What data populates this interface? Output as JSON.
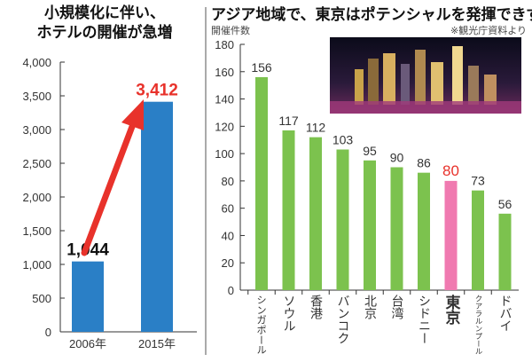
{
  "chart_data": [
    {
      "type": "bar",
      "title_lines": [
        "小規模化に伴い、",
        "ホテルの開催が急増"
      ],
      "categories": [
        "2006年",
        "2015年"
      ],
      "values": [
        1044,
        3412
      ],
      "value_labels": [
        "1,044",
        "3,412"
      ],
      "ylim": [
        0,
        4000
      ],
      "yticks": [
        "0",
        "500",
        "1,000",
        "1,500",
        "2,000",
        "2,500",
        "3,000",
        "3,500",
        "4,000"
      ],
      "colors": {
        "bar": "#2a7fc6",
        "highlight_label": "#e8322b",
        "arrow": "#e8322b"
      }
    },
    {
      "type": "bar",
      "title": "アジア地域で、東京はポテンシャルを発揮できず",
      "ylabel": "開催件数",
      "source": "※観光庁資料より",
      "ylim": [
        0,
        180
      ],
      "yticks": [
        "0",
        "20",
        "40",
        "60",
        "80",
        "100",
        "120",
        "140",
        "160",
        "180"
      ],
      "categories": [
        "シンガポール",
        "ソウル",
        "香港",
        "バンコク",
        "北京",
        "台湾",
        "シドニー",
        "東京",
        "クアラルンプール",
        "ドバイ"
      ],
      "values": [
        156,
        117,
        112,
        103,
        95,
        90,
        86,
        80,
        73,
        56
      ],
      "highlight": "東京",
      "colors": {
        "bar": "#7cc24e",
        "highlight_bar": "#f07ab0",
        "highlight_label": "#e8322b"
      }
    }
  ]
}
